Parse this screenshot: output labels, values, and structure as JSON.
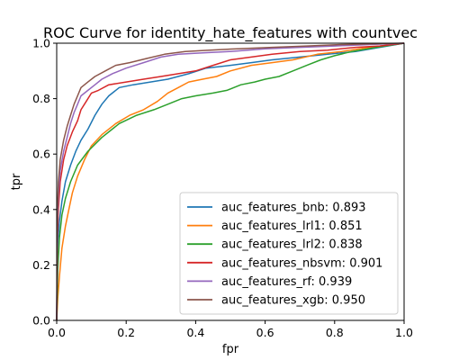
{
  "chart_data": {
    "type": "line",
    "title": "ROC Curve for identity_hate_features with countvec",
    "xlabel": "fpr",
    "ylabel": "tpr",
    "xlim": [
      0,
      1
    ],
    "ylim": [
      0,
      1
    ],
    "xticks": [
      "0.0",
      "0.2",
      "0.4",
      "0.6",
      "0.8",
      "1.0"
    ],
    "yticks": [
      "0.0",
      "0.2",
      "0.4",
      "0.6",
      "0.8",
      "1.0"
    ],
    "grid": false,
    "legend_position": "lower-right",
    "series": [
      {
        "name": "auc_features_bnb: 0.893",
        "color": "#1f77b4",
        "points": [
          [
            0,
            0
          ],
          [
            0.003,
            0.28
          ],
          [
            0.008,
            0.36
          ],
          [
            0.015,
            0.43
          ],
          [
            0.025,
            0.5
          ],
          [
            0.04,
            0.56
          ],
          [
            0.055,
            0.61
          ],
          [
            0.07,
            0.65
          ],
          [
            0.09,
            0.69
          ],
          [
            0.11,
            0.74
          ],
          [
            0.13,
            0.78
          ],
          [
            0.15,
            0.81
          ],
          [
            0.18,
            0.84
          ],
          [
            0.22,
            0.85
          ],
          [
            0.27,
            0.86
          ],
          [
            0.32,
            0.87
          ],
          [
            0.38,
            0.89
          ],
          [
            0.43,
            0.91
          ],
          [
            0.5,
            0.92
          ],
          [
            0.56,
            0.93
          ],
          [
            0.62,
            0.94
          ],
          [
            0.7,
            0.95
          ],
          [
            0.78,
            0.96
          ],
          [
            0.86,
            0.97
          ],
          [
            0.93,
            0.985
          ],
          [
            1,
            1
          ]
        ]
      },
      {
        "name": "auc_features_lrl1: 0.851",
        "color": "#ff7f0e",
        "points": [
          [
            0,
            0
          ],
          [
            0.003,
            0.08
          ],
          [
            0.008,
            0.16
          ],
          [
            0.015,
            0.26
          ],
          [
            0.025,
            0.34
          ],
          [
            0.035,
            0.4
          ],
          [
            0.045,
            0.46
          ],
          [
            0.06,
            0.52
          ],
          [
            0.08,
            0.58
          ],
          [
            0.1,
            0.63
          ],
          [
            0.13,
            0.67
          ],
          [
            0.17,
            0.71
          ],
          [
            0.21,
            0.74
          ],
          [
            0.25,
            0.76
          ],
          [
            0.29,
            0.79
          ],
          [
            0.32,
            0.82
          ],
          [
            0.35,
            0.84
          ],
          [
            0.38,
            0.86
          ],
          [
            0.42,
            0.87
          ],
          [
            0.46,
            0.88
          ],
          [
            0.5,
            0.9
          ],
          [
            0.56,
            0.92
          ],
          [
            0.62,
            0.93
          ],
          [
            0.68,
            0.94
          ],
          [
            0.75,
            0.96
          ],
          [
            0.82,
            0.97
          ],
          [
            0.9,
            0.985
          ],
          [
            1,
            1
          ]
        ]
      },
      {
        "name": "auc_features_lrl2: 0.838",
        "color": "#2ca02c",
        "points": [
          [
            0,
            0
          ],
          [
            0.003,
            0.18
          ],
          [
            0.008,
            0.3
          ],
          [
            0.015,
            0.38
          ],
          [
            0.025,
            0.44
          ],
          [
            0.04,
            0.5
          ],
          [
            0.06,
            0.56
          ],
          [
            0.09,
            0.61
          ],
          [
            0.13,
            0.66
          ],
          [
            0.18,
            0.71
          ],
          [
            0.23,
            0.74
          ],
          [
            0.28,
            0.76
          ],
          [
            0.32,
            0.78
          ],
          [
            0.36,
            0.8
          ],
          [
            0.4,
            0.81
          ],
          [
            0.45,
            0.82
          ],
          [
            0.49,
            0.83
          ],
          [
            0.53,
            0.85
          ],
          [
            0.57,
            0.86
          ],
          [
            0.6,
            0.87
          ],
          [
            0.64,
            0.88
          ],
          [
            0.68,
            0.9
          ],
          [
            0.72,
            0.92
          ],
          [
            0.76,
            0.94
          ],
          [
            0.8,
            0.955
          ],
          [
            0.85,
            0.97
          ],
          [
            0.92,
            0.985
          ],
          [
            1,
            1
          ]
        ]
      },
      {
        "name": "auc_features_nbsvm: 0.901",
        "color": "#d62728",
        "points": [
          [
            0,
            0
          ],
          [
            0.002,
            0.3
          ],
          [
            0.005,
            0.4
          ],
          [
            0.01,
            0.5
          ],
          [
            0.02,
            0.58
          ],
          [
            0.03,
            0.63
          ],
          [
            0.045,
            0.68
          ],
          [
            0.06,
            0.72
          ],
          [
            0.07,
            0.76
          ],
          [
            0.085,
            0.79
          ],
          [
            0.1,
            0.82
          ],
          [
            0.12,
            0.83
          ],
          [
            0.15,
            0.85
          ],
          [
            0.2,
            0.86
          ],
          [
            0.25,
            0.87
          ],
          [
            0.3,
            0.88
          ],
          [
            0.35,
            0.89
          ],
          [
            0.4,
            0.9
          ],
          [
            0.45,
            0.92
          ],
          [
            0.5,
            0.94
          ],
          [
            0.56,
            0.95
          ],
          [
            0.62,
            0.96
          ],
          [
            0.7,
            0.97
          ],
          [
            0.78,
            0.975
          ],
          [
            0.86,
            0.985
          ],
          [
            0.93,
            0.99
          ],
          [
            1,
            1
          ]
        ]
      },
      {
        "name": "auc_features_rf: 0.939",
        "color": "#9467bd",
        "points": [
          [
            0,
            0
          ],
          [
            0.002,
            0.35
          ],
          [
            0.005,
            0.46
          ],
          [
            0.01,
            0.54
          ],
          [
            0.02,
            0.61
          ],
          [
            0.03,
            0.66
          ],
          [
            0.04,
            0.71
          ],
          [
            0.05,
            0.75
          ],
          [
            0.06,
            0.78
          ],
          [
            0.07,
            0.81
          ],
          [
            0.09,
            0.83
          ],
          [
            0.11,
            0.85
          ],
          [
            0.13,
            0.87
          ],
          [
            0.16,
            0.89
          ],
          [
            0.2,
            0.91
          ],
          [
            0.25,
            0.93
          ],
          [
            0.3,
            0.95
          ],
          [
            0.35,
            0.96
          ],
          [
            0.42,
            0.965
          ],
          [
            0.5,
            0.97
          ],
          [
            0.6,
            0.98
          ],
          [
            0.7,
            0.985
          ],
          [
            0.8,
            0.99
          ],
          [
            0.9,
            0.995
          ],
          [
            1,
            1
          ]
        ]
      },
      {
        "name": "auc_features_xgb: 0.950",
        "color": "#8c564b",
        "points": [
          [
            0,
            0
          ],
          [
            0.002,
            0.4
          ],
          [
            0.005,
            0.5
          ],
          [
            0.01,
            0.58
          ],
          [
            0.02,
            0.65
          ],
          [
            0.03,
            0.7
          ],
          [
            0.04,
            0.74
          ],
          [
            0.05,
            0.78
          ],
          [
            0.06,
            0.81
          ],
          [
            0.07,
            0.84
          ],
          [
            0.09,
            0.86
          ],
          [
            0.11,
            0.88
          ],
          [
            0.14,
            0.9
          ],
          [
            0.17,
            0.92
          ],
          [
            0.21,
            0.93
          ],
          [
            0.26,
            0.945
          ],
          [
            0.31,
            0.96
          ],
          [
            0.37,
            0.97
          ],
          [
            0.44,
            0.975
          ],
          [
            0.52,
            0.98
          ],
          [
            0.62,
            0.985
          ],
          [
            0.72,
            0.99
          ],
          [
            0.82,
            0.995
          ],
          [
            0.92,
            0.998
          ],
          [
            1,
            1
          ]
        ]
      }
    ]
  }
}
